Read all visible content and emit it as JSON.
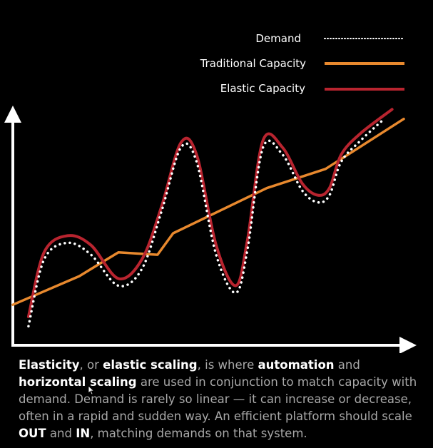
{
  "chart_data": {
    "type": "line",
    "title": "",
    "xlabel": "",
    "ylabel": "",
    "xlim": [
      0,
      100
    ],
    "ylim": [
      0,
      100
    ],
    "grid": false,
    "legend_position": "top-right",
    "series": [
      {
        "name": "Demand",
        "style": "dotted",
        "color": "#ffffff",
        "points": [
          [
            4,
            8
          ],
          [
            8,
            36
          ],
          [
            14,
            43
          ],
          [
            20,
            38
          ],
          [
            27,
            25
          ],
          [
            33,
            32
          ],
          [
            38,
            56
          ],
          [
            43,
            83
          ],
          [
            47,
            77
          ],
          [
            52,
            38
          ],
          [
            57,
            22
          ],
          [
            60,
            40
          ],
          [
            64,
            83
          ],
          [
            69,
            80
          ],
          [
            74,
            65
          ],
          [
            78,
            60
          ],
          [
            81,
            63
          ],
          [
            84,
            77
          ],
          [
            89,
            86
          ],
          [
            95,
            95
          ]
        ]
      },
      {
        "name": "Traditional Capacity",
        "style": "solid",
        "color": "#e8892e",
        "points": [
          [
            0,
            17
          ],
          [
            17,
            29
          ],
          [
            27,
            39
          ],
          [
            37,
            38
          ],
          [
            41,
            47
          ],
          [
            65,
            66
          ],
          [
            80,
            74
          ],
          [
            100,
            95
          ]
        ]
      },
      {
        "name": "Elastic Capacity",
        "style": "solid",
        "color": "#b8242f",
        "points": [
          [
            4,
            12
          ],
          [
            8,
            39
          ],
          [
            14,
            46
          ],
          [
            20,
            42
          ],
          [
            27,
            28
          ],
          [
            33,
            36
          ],
          [
            38,
            58
          ],
          [
            43,
            85
          ],
          [
            47,
            80
          ],
          [
            52,
            42
          ],
          [
            57,
            25
          ],
          [
            60,
            44
          ],
          [
            64,
            86
          ],
          [
            69,
            83
          ],
          [
            74,
            68
          ],
          [
            78,
            63
          ],
          [
            81,
            66
          ],
          [
            84,
            80
          ],
          [
            89,
            89
          ],
          [
            97,
            99
          ]
        ]
      }
    ]
  },
  "caption": {
    "t1": "Elasticity",
    "t2": ", or ",
    "t3": "elastic scaling",
    "t4": ", is where ",
    "t5": "automation",
    "t6": " and ",
    "t7": "horizontal scaling",
    "t8": " are used in conjunction to match capacity with demand. Demand is rarely so linear — it can increase or decrease, often in a rapid and sudden way. An efficient platform should scale ",
    "t9": "OUT",
    "t10": " and ",
    "t11": "IN",
    "t12": ", matching demands on that system."
  }
}
